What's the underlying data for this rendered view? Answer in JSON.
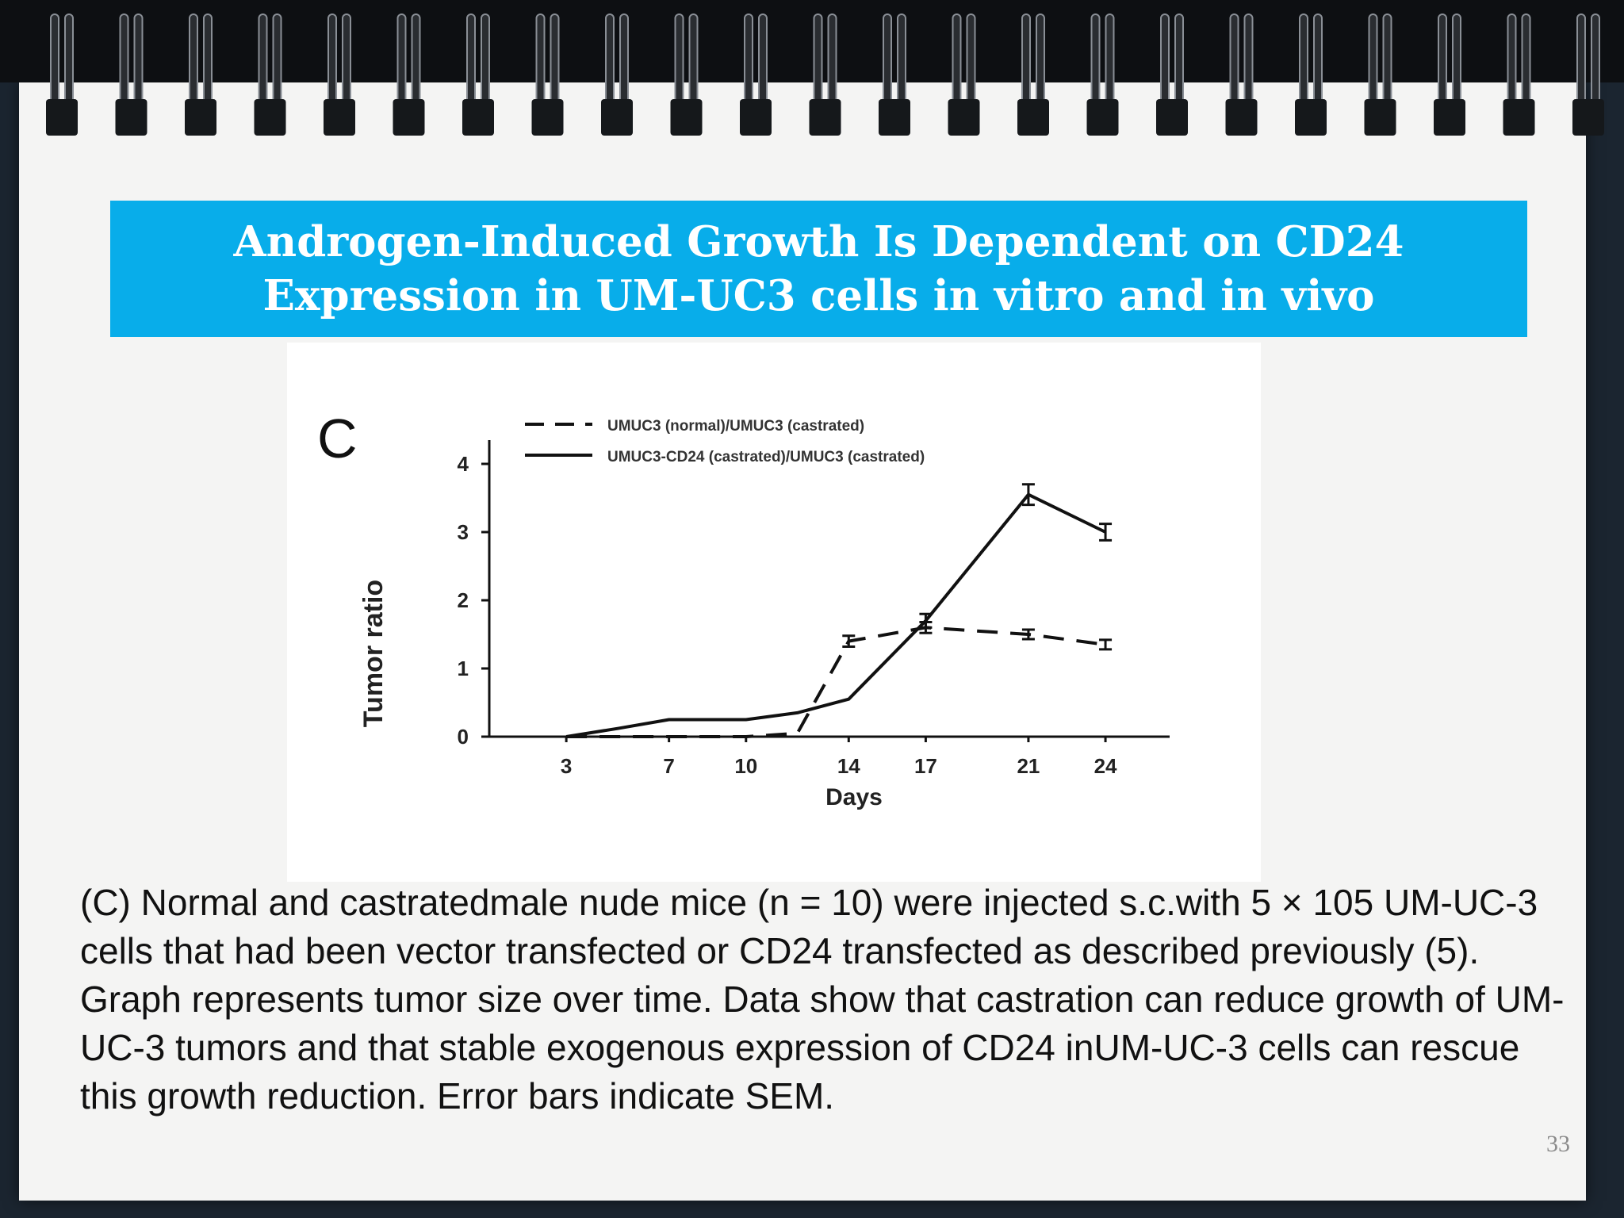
{
  "slide": {
    "title_lines": [
      "Androgen-Induced Growth Is Dependent on CD24",
      "Expression in UM-UC3 cells in vitro and in vivo"
    ],
    "caption": "(C) Normal and castratedmale nude mice (n = 10) were injected s.c.with 5 × 105 UM-UC-3 cells that had been vector transfected or CD24 transfected as described previously (5). Graph represents tumor size over time. Data show that castration can reduce growth of UM-UC-3 tumors and that stable exogenous expression of CD24 inUM-UC-3 cells can rescue this growth reduction. Error bars indicate SEM.",
    "page_number": "33",
    "title_bg_color": "#08adea"
  },
  "chart_data": {
    "type": "line",
    "panel_label": "C",
    "xlabel": "Days",
    "ylabel": "Tumor ratio",
    "categories": [
      "3",
      "7",
      "10",
      "14",
      "17",
      "21",
      "24"
    ],
    "x": [
      3,
      7,
      10,
      14,
      17,
      21,
      24
    ],
    "ylim": [
      0,
      4
    ],
    "yticks": [
      "0",
      "1",
      "2",
      "3",
      "4"
    ],
    "legend_position": "top",
    "series": [
      {
        "name": "UMUC3 (normal)/UMUC3 (castrated)",
        "style": "dashed",
        "x": [
          3,
          7,
          10,
          12,
          14,
          17,
          21,
          24
        ],
        "values": [
          0.0,
          0.0,
          0.0,
          0.05,
          1.4,
          1.6,
          1.5,
          1.35
        ],
        "error": [
          0,
          0,
          0,
          0,
          0.08,
          0.08,
          0.07,
          0.07
        ]
      },
      {
        "name": "UMUC3-CD24 (castrated)/UMUC3 (castrated)",
        "style": "solid",
        "x": [
          3,
          5,
          7,
          10,
          12,
          14,
          17,
          21,
          24
        ],
        "values": [
          0.0,
          0.12,
          0.25,
          0.25,
          0.35,
          0.55,
          1.7,
          3.55,
          3.0
        ],
        "error": [
          0,
          0,
          0,
          0,
          0,
          0,
          0.1,
          0.15,
          0.12
        ]
      }
    ]
  }
}
